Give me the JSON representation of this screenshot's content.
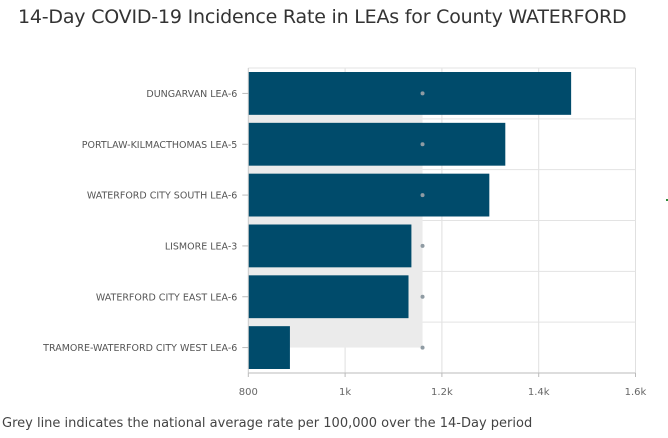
{
  "chart_data": {
    "type": "bar",
    "orientation": "horizontal",
    "title": "14-Day COVID-19 Incidence Rate in LEAs for County WATERFORD",
    "xlabel": "",
    "ylabel": "",
    "categories": [
      "DUNGARVAN LEA-6",
      "PORTLAW-KILMACTHOMAS LEA-5",
      "WATERFORD CITY SOUTH LEA-6",
      "LISMORE LEA-3",
      "WATERFORD CITY EAST LEA-6",
      "TRAMORE-WATERFORD CITY WEST LEA-6"
    ],
    "series": [
      {
        "name": "14-Day Incidence Rate",
        "values": [
          1467,
          1331,
          1298,
          1137,
          1131,
          886
        ],
        "color": "#004b6b"
      },
      {
        "name": "National Average",
        "values": [
          1160,
          1160,
          1160,
          1160,
          1160,
          1160
        ],
        "color": "#8f9ba3"
      }
    ],
    "xlim": [
      800,
      1600
    ],
    "xticks": [
      800,
      1000,
      1200,
      1400,
      1600
    ],
    "xtick_labels": [
      "800",
      "1k",
      "1.2k",
      "1.4k",
      "1.6k"
    ],
    "grid": true,
    "legend": "none",
    "footnote": "Grey line indicates the national average rate per 100,000 over the 14-Day period"
  }
}
